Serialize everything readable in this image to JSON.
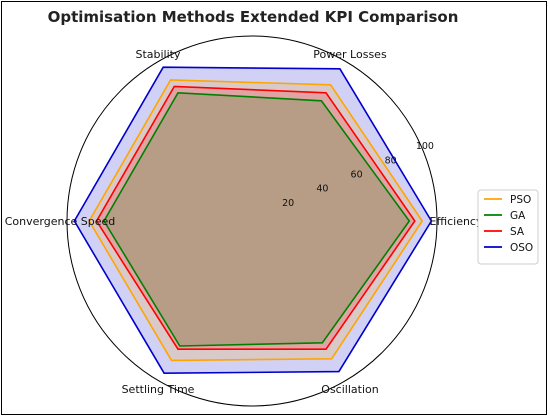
{
  "chart_data": {
    "type": "radar",
    "title": "Optimisation Methods Extended KPI Comparison",
    "axes": [
      "Efficiency",
      "Power Losses",
      "Stability",
      "Convergence Speed",
      "Settling Time",
      "Oscillation"
    ],
    "rlim": [
      0,
      100
    ],
    "radial_ticks": [
      20,
      40,
      60,
      80,
      100
    ],
    "grid": false,
    "legend_position": "right",
    "series": [
      {
        "name": "PSO",
        "color": "#FFA500",
        "values": [
          92,
          85,
          88,
          88,
          87,
          86
        ]
      },
      {
        "name": "GA",
        "color": "#008000",
        "values": [
          85,
          75,
          80,
          80,
          78,
          76
        ]
      },
      {
        "name": "SA",
        "color": "#FF0000",
        "values": [
          88,
          80,
          84,
          84,
          80,
          80
        ]
      },
      {
        "name": "OSO",
        "color": "#0000CD",
        "values": [
          97,
          95,
          96,
          96,
          95,
          94
        ]
      }
    ]
  }
}
